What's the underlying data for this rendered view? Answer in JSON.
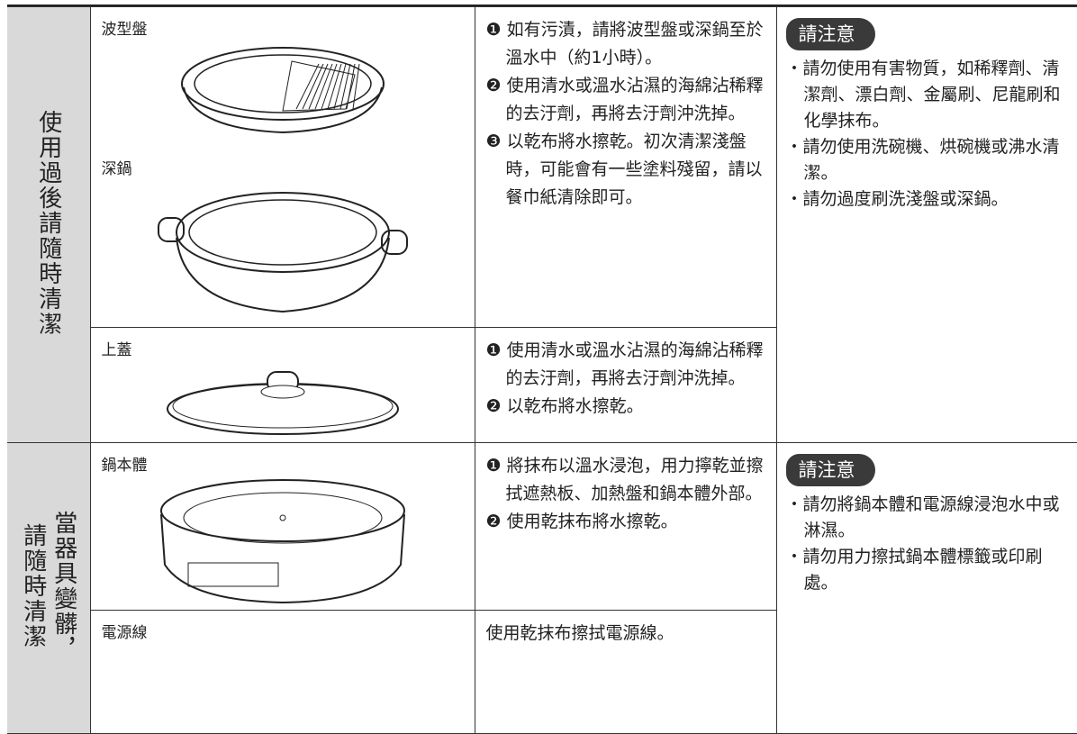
{
  "sections": [
    {
      "label": [
        "使用過後請隨時清潔"
      ],
      "rows": [
        {
          "parts": [
            "波型盤",
            "深鍋"
          ],
          "steps": [
            "❶ 如有污漬，請將波型盤或深鍋至於溫水中（約1小時）。",
            "❷ 使用清水或溫水沾濕的海綿沾稀釋的去汙劑，再將去汙劑沖洗掉。",
            "❸ 以乾布將水擦乾。初次清潔淺盤時，可能會有一些塗料殘留，請以餐巾紙清除即可。"
          ]
        },
        {
          "parts": [
            "上蓋"
          ],
          "steps": [
            "❶ 使用清水或溫水沾濕的海綿沾稀釋的去汙劑，再將去汙劑沖洗掉。",
            "❷ 以乾布將水擦乾。"
          ]
        }
      ],
      "notes": {
        "title": "請注意",
        "items": [
          "請勿使用有害物質，如稀釋劑、清潔劑、漂白劑、金屬刷、尼龍刷和化學抹布。",
          "請勿使用洗碗機、烘碗機或沸水清潔。",
          "請勿過度刷洗淺盤或深鍋。"
        ]
      }
    },
    {
      "label": [
        "當器具變髒，",
        "請隨時清潔"
      ],
      "rows": [
        {
          "parts": [
            "鍋本體"
          ],
          "steps": [
            "❶ 將抹布以溫水浸泡，用力擰乾並擦拭遮熱板、加熱盤和鍋本體外部。",
            "❷ 使用乾抹布將水擦乾。"
          ]
        },
        {
          "parts": [
            "電源線"
          ],
          "steps": [
            "使用乾抹布擦拭電源線。"
          ]
        }
      ],
      "notes": {
        "title": "請注意",
        "items": [
          "請勿將鍋本體和電源線浸泡水中或淋濕。",
          "請勿用力擦拭鍋本體標籤或印刷處。"
        ]
      }
    }
  ]
}
